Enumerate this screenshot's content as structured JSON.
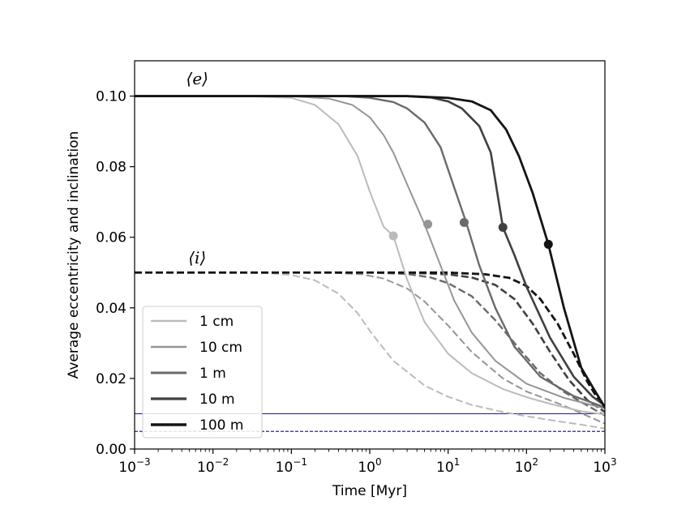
{
  "chart_data": {
    "type": "line",
    "xlabel": "Time [Myr]",
    "ylabel": "Average eccentricity and inclination",
    "xscale": "log",
    "xlim": [
      0.001,
      1000
    ],
    "ylim": [
      0,
      0.11
    ],
    "x_ticks": [
      {
        "base": "10",
        "exp": "−3",
        "value": 0.001
      },
      {
        "base": "10",
        "exp": "−2",
        "value": 0.01
      },
      {
        "base": "10",
        "exp": "−1",
        "value": 0.1
      },
      {
        "base": "10",
        "exp": "0",
        "value": 1
      },
      {
        "base": "10",
        "exp": "1",
        "value": 10
      },
      {
        "base": "10",
        "exp": "2",
        "value": 100
      },
      {
        "base": "10",
        "exp": "3",
        "value": 1000
      }
    ],
    "y_ticks": [
      {
        "label": "0.00",
        "value": 0.0
      },
      {
        "label": "0.02",
        "value": 0.02
      },
      {
        "label": "0.04",
        "value": 0.04
      },
      {
        "label": "0.06",
        "value": 0.06
      },
      {
        "label": "0.08",
        "value": 0.08
      },
      {
        "label": "0.10",
        "value": 0.1
      }
    ],
    "annotations": [
      {
        "text": "⟨e⟩",
        "x": 0.0063,
        "y": 0.1033
      },
      {
        "text": "⟨i⟩",
        "x": 0.0063,
        "y": 0.0526
      }
    ],
    "legend_location": "lower-left",
    "series": [
      {
        "name": "1 cm",
        "color": "#bbbbbb",
        "width": 2,
        "ecc": [
          [
            0.001,
            0.1
          ],
          [
            0.01,
            0.1
          ],
          [
            0.03,
            0.09995
          ],
          [
            0.1,
            0.0995
          ],
          [
            0.2,
            0.0975
          ],
          [
            0.4,
            0.092
          ],
          [
            0.7,
            0.083
          ],
          [
            1.0,
            0.073
          ],
          [
            1.5,
            0.063
          ],
          [
            2.0,
            0.0604
          ],
          [
            3.0,
            0.048
          ],
          [
            5.0,
            0.036
          ],
          [
            10.0,
            0.027
          ],
          [
            20.0,
            0.0215
          ],
          [
            50.0,
            0.017
          ],
          [
            100.0,
            0.0147
          ],
          [
            200.0,
            0.0128
          ],
          [
            500.0,
            0.0107
          ],
          [
            1000.0,
            0.0098
          ]
        ],
        "inc": [
          [
            0.001,
            0.05
          ],
          [
            0.01,
            0.05
          ],
          [
            0.05,
            0.04985
          ],
          [
            0.1,
            0.0493
          ],
          [
            0.2,
            0.0478
          ],
          [
            0.4,
            0.044
          ],
          [
            0.7,
            0.0385
          ],
          [
            1.0,
            0.0335
          ],
          [
            2.0,
            0.025
          ],
          [
            5.0,
            0.018
          ],
          [
            10.0,
            0.0148
          ],
          [
            20.0,
            0.0125
          ],
          [
            50.0,
            0.0105
          ],
          [
            100.0,
            0.0093
          ],
          [
            200.0,
            0.0082
          ],
          [
            500.0,
            0.0069
          ],
          [
            1000.0,
            0.0058
          ]
        ],
        "marker": [
          2.0,
          0.0604
        ]
      },
      {
        "name": "10 cm",
        "color": "#959595",
        "width": 2,
        "ecc": [
          [
            0.001,
            0.1
          ],
          [
            0.03,
            0.1
          ],
          [
            0.1,
            0.09995
          ],
          [
            0.3,
            0.0993
          ],
          [
            0.6,
            0.0975
          ],
          [
            1.0,
            0.094
          ],
          [
            1.5,
            0.089
          ],
          [
            2.0,
            0.084
          ],
          [
            3.0,
            0.075
          ],
          [
            5.0,
            0.0637
          ],
          [
            8.0,
            0.052
          ],
          [
            12.0,
            0.042
          ],
          [
            20.0,
            0.033
          ],
          [
            40.0,
            0.025
          ],
          [
            100.0,
            0.0185
          ],
          [
            300.0,
            0.0145
          ],
          [
            1000.0,
            0.0115
          ]
        ],
        "inc": [
          [
            0.001,
            0.05
          ],
          [
            0.3,
            0.05
          ],
          [
            0.8,
            0.0495
          ],
          [
            1.5,
            0.0483
          ],
          [
            3.0,
            0.0455
          ],
          [
            5.0,
            0.0418
          ],
          [
            10.0,
            0.035
          ],
          [
            20.0,
            0.0275
          ],
          [
            50.0,
            0.02
          ],
          [
            100.0,
            0.0163
          ],
          [
            300.0,
            0.0123
          ],
          [
            1000.0,
            0.0072
          ]
        ],
        "marker": [
          5.5,
          0.0637
        ]
      },
      {
        "name": "1 m",
        "color": "#6a6a6a",
        "width": 2.4,
        "ecc": [
          [
            0.001,
            0.1
          ],
          [
            0.1,
            0.1
          ],
          [
            0.5,
            0.09995
          ],
          [
            1.0,
            0.0995
          ],
          [
            2.0,
            0.0983
          ],
          [
            3.0,
            0.0965
          ],
          [
            5.0,
            0.0925
          ],
          [
            8.0,
            0.0855
          ],
          [
            12.0,
            0.074
          ],
          [
            17.0,
            0.0642
          ],
          [
            25.0,
            0.052
          ],
          [
            40.0,
            0.04
          ],
          [
            70.0,
            0.029
          ],
          [
            150.0,
            0.0205
          ],
          [
            400.0,
            0.015
          ],
          [
            1000.0,
            0.0118
          ]
        ],
        "inc": [
          [
            0.001,
            0.05
          ],
          [
            1.0,
            0.05
          ],
          [
            3.0,
            0.0496
          ],
          [
            6.0,
            0.0486
          ],
          [
            10.0,
            0.047
          ],
          [
            20.0,
            0.0433
          ],
          [
            40.0,
            0.0365
          ],
          [
            80.0,
            0.0285
          ],
          [
            150.0,
            0.0215
          ],
          [
            300.0,
            0.0162
          ],
          [
            600.0,
            0.0123
          ],
          [
            1000.0,
            0.0095
          ]
        ],
        "marker": [
          16.0,
          0.0642
        ]
      },
      {
        "name": "10 m",
        "color": "#404040",
        "width": 2.6,
        "ecc": [
          [
            0.001,
            0.1
          ],
          [
            1.0,
            0.1
          ],
          [
            3.0,
            0.09995
          ],
          [
            6.0,
            0.0996
          ],
          [
            10.0,
            0.0985
          ],
          [
            15.0,
            0.0965
          ],
          [
            25.0,
            0.0915
          ],
          [
            35.0,
            0.084
          ],
          [
            50.0,
            0.0628
          ],
          [
            70.0,
            0.055
          ],
          [
            100.0,
            0.046
          ],
          [
            200.0,
            0.0315
          ],
          [
            400.0,
            0.0205
          ],
          [
            700.0,
            0.0148
          ],
          [
            1000.0,
            0.0123
          ]
        ],
        "inc": [
          [
            0.001,
            0.05
          ],
          [
            3.0,
            0.05
          ],
          [
            10.0,
            0.0495
          ],
          [
            20.0,
            0.0486
          ],
          [
            40.0,
            0.0465
          ],
          [
            70.0,
            0.0425
          ],
          [
            120.0,
            0.0355
          ],
          [
            200.0,
            0.0275
          ],
          [
            350.0,
            0.0195
          ],
          [
            600.0,
            0.0138
          ],
          [
            1000.0,
            0.0105
          ]
        ],
        "marker": [
          50.0,
          0.0628
        ]
      },
      {
        "name": "100 m",
        "color": "#141414",
        "width": 2.8,
        "ecc": [
          [
            0.001,
            0.1
          ],
          [
            3.0,
            0.1
          ],
          [
            10.0,
            0.0995
          ],
          [
            20.0,
            0.0985
          ],
          [
            35.0,
            0.096
          ],
          [
            55.0,
            0.0905
          ],
          [
            80.0,
            0.083
          ],
          [
            120.0,
            0.0725
          ],
          [
            190.0,
            0.058
          ],
          [
            300.0,
            0.04
          ],
          [
            500.0,
            0.023
          ],
          [
            700.0,
            0.0175
          ],
          [
            1000.0,
            0.0118
          ]
        ],
        "inc": [
          [
            0.001,
            0.05
          ],
          [
            10.0,
            0.05
          ],
          [
            30.0,
            0.0495
          ],
          [
            60.0,
            0.0485
          ],
          [
            100.0,
            0.0462
          ],
          [
            150.0,
            0.0425
          ],
          [
            250.0,
            0.0355
          ],
          [
            400.0,
            0.027
          ],
          [
            600.0,
            0.019
          ],
          [
            800.0,
            0.0145
          ],
          [
            1000.0,
            0.0118
          ]
        ],
        "marker": [
          190.0,
          0.058
        ]
      }
    ],
    "reference_lines": [
      {
        "name": "blue-solid",
        "y": 0.01,
        "color": "#1f1fe0",
        "style": "solid"
      },
      {
        "name": "blue-dashed",
        "y": 0.005,
        "color": "#1f1fe0",
        "style": "dashed"
      }
    ]
  }
}
